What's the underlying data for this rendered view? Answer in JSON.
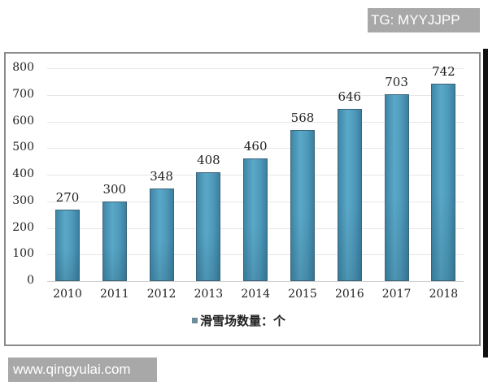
{
  "watermarks": {
    "top": "TG: MYYJJPP",
    "bottom": "www.qingyulai.com"
  },
  "legend": {
    "label": "滑雪场数量：个",
    "swatch_color": "#6f8c9a"
  },
  "colors": {
    "bar": "#4f9abb",
    "bar_border": "#3c6478"
  },
  "chart_data": {
    "type": "bar",
    "title": "",
    "xlabel": "",
    "ylabel": "",
    "categories": [
      "2010",
      "2011",
      "2012",
      "2013",
      "2014",
      "2015",
      "2016",
      "2017",
      "2018"
    ],
    "series": [
      {
        "name": "滑雪场数量：个",
        "values": [
          270,
          300,
          348,
          408,
          460,
          568,
          646,
          703,
          742
        ]
      }
    ],
    "data_labels": [
      "270",
      "300",
      "348",
      "408",
      "460",
      "568",
      "646",
      "703",
      "742"
    ],
    "yticks": [
      "0",
      "100",
      "200",
      "300",
      "400",
      "500",
      "600",
      "700",
      "800"
    ],
    "ylim": [
      0,
      800
    ],
    "grid": true,
    "legend_position": "bottom"
  }
}
